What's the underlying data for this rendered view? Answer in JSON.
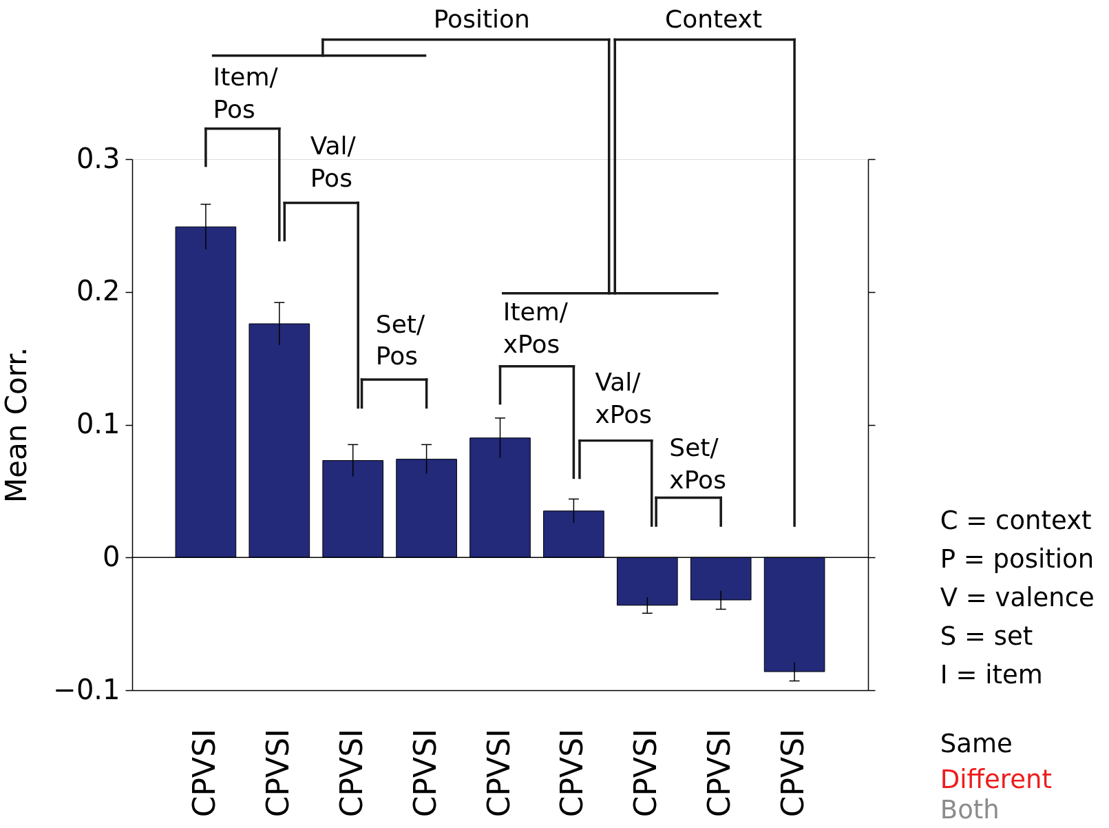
{
  "chart_data": {
    "type": "bar",
    "ylabel": "Mean Corr.",
    "categories": [
      "CPVSI",
      "CPVSI",
      "CPVSI",
      "CPVSI",
      "CPVSI",
      "CPVSI",
      "CPVSI",
      "CPVSI",
      "CPVSI"
    ],
    "values": [
      0.249,
      0.176,
      0.073,
      0.074,
      0.09,
      0.035,
      -0.036,
      -0.032,
      -0.086
    ],
    "errors": [
      0.017,
      0.016,
      0.012,
      0.011,
      0.015,
      0.009,
      0.006,
      0.007,
      0.007
    ],
    "color": "#232a7a",
    "ylim": [
      -0.1,
      0.3
    ],
    "yticks": [
      {
        "value": -0.1,
        "label": "−0.1"
      },
      0,
      0.1,
      0.2,
      0.3
    ],
    "ref_lines": [
      {
        "axis": "y",
        "value": 0
      }
    ],
    "grid": false,
    "annotations": [
      "Position",
      "Context",
      "Item/\nPos",
      "Val/\nPos",
      "Set/\nPos",
      "Item/\nxPos",
      "Val/\nxPos",
      "Set/\nxPos",
      "C = context",
      "P = position",
      "V = valence",
      "S = set",
      "I = item",
      "Same",
      "Different",
      "Both"
    ]
  }
}
